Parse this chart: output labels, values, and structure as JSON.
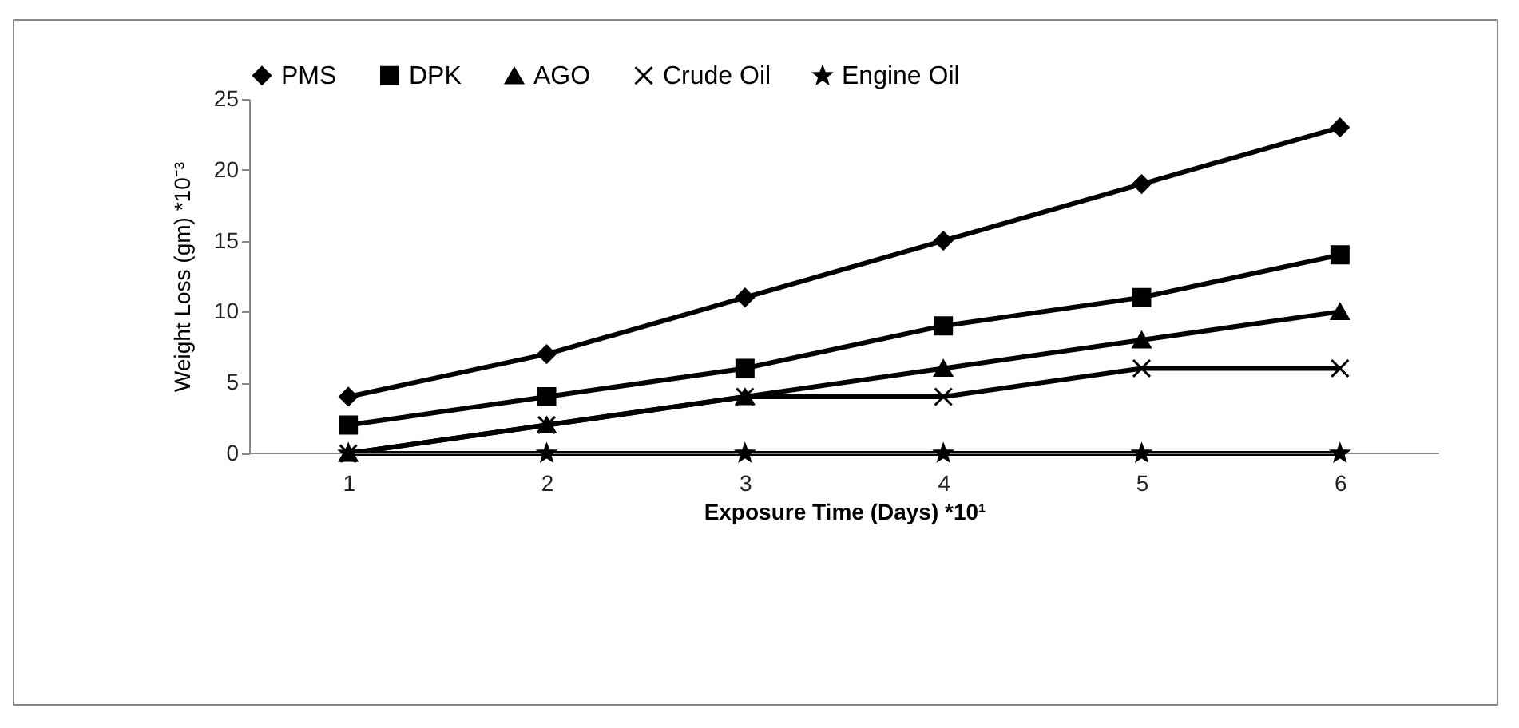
{
  "chart_data": {
    "type": "line",
    "xlabel": "Exposure Time (Days) *10¹",
    "ylabel": "Weight Loss (gm) *10⁻³",
    "categories": [
      "1",
      "2",
      "3",
      "4",
      "5",
      "6"
    ],
    "ylim": [
      0,
      25
    ],
    "yticks": [
      0,
      5,
      10,
      15,
      20,
      25
    ],
    "legend": "top",
    "line_style": "solid",
    "series": [
      {
        "name": "PMS",
        "color": "#000000",
        "marker": "diamond",
        "values": [
          4,
          7,
          11,
          15,
          19,
          23
        ]
      },
      {
        "name": "DPK",
        "color": "#000000",
        "marker": "square",
        "values": [
          2,
          4,
          6,
          9,
          11,
          14
        ]
      },
      {
        "name": "AGO",
        "color": "#000000",
        "marker": "triangle",
        "values": [
          0,
          2,
          4,
          6,
          8,
          10
        ]
      },
      {
        "name": "Crude Oil",
        "color": "#000000",
        "marker": "cross",
        "values": [
          0,
          2,
          4,
          4,
          6,
          6
        ]
      },
      {
        "name": "Engine Oil",
        "color": "#000000",
        "marker": "star",
        "values": [
          0,
          0,
          0,
          0,
          0,
          0
        ]
      }
    ]
  }
}
